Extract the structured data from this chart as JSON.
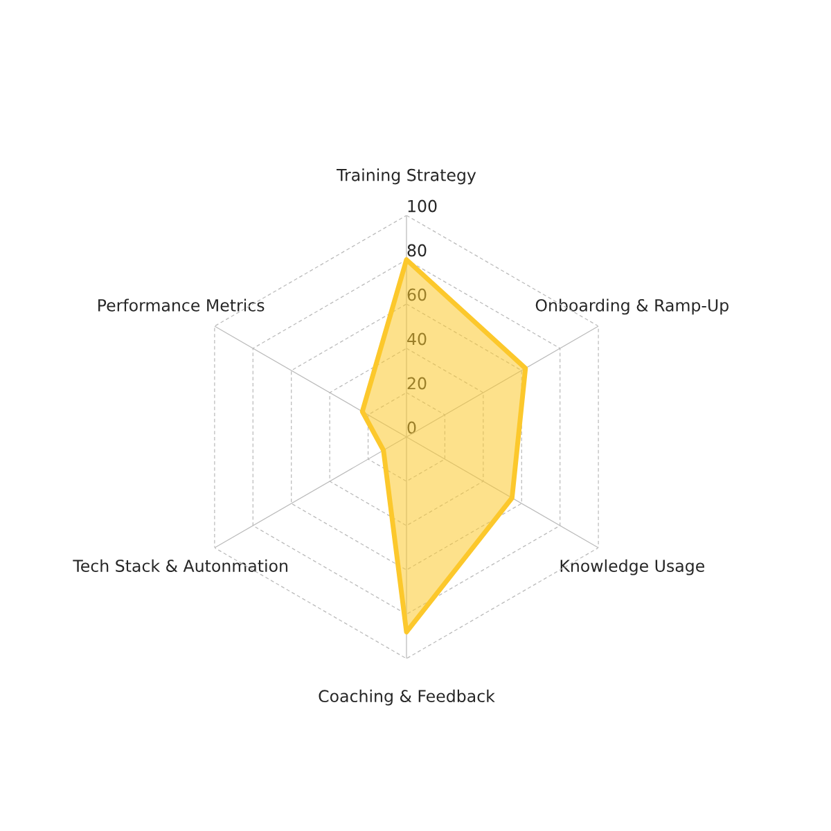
{
  "chart_data": {
    "type": "radar",
    "categories": [
      "Training Strategy",
      "Onboarding & Ramp-Up",
      "Knowledge Usage",
      "Coaching & Feedback",
      "Tech Stack & Autonmation",
      "Performance Metrics"
    ],
    "series": [
      {
        "color": "#fcc82c",
        "values": [
          80,
          62,
          55,
          88,
          12,
          23
        ]
      }
    ],
    "ylim": [
      0,
      100
    ],
    "yticks": [
      0,
      20,
      40,
      60,
      80,
      100
    ],
    "grid": true
  }
}
